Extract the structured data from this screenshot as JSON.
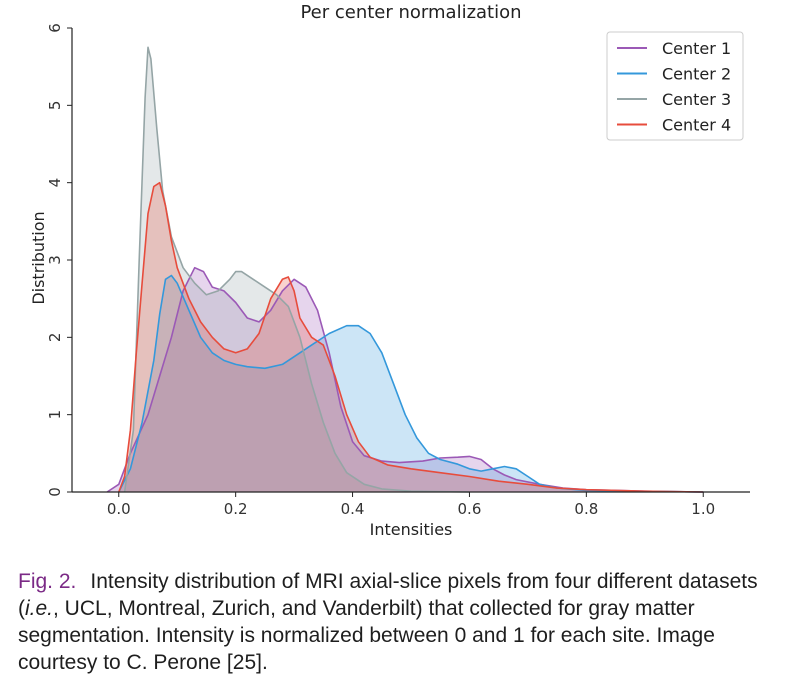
{
  "chart_data": {
    "type": "area",
    "title": "Per center normalization",
    "xlabel": "Intensities",
    "ylabel": "Distribution",
    "xlim": [
      -0.08,
      1.08
    ],
    "ylim": [
      0,
      6
    ],
    "xticks": [
      0.0,
      0.2,
      0.4,
      0.6,
      0.8,
      1.0
    ],
    "xtick_labels": [
      "0.0",
      "0.2",
      "0.4",
      "0.6",
      "0.8",
      "1.0"
    ],
    "yticks": [
      0,
      1,
      2,
      3,
      4,
      5,
      6
    ],
    "ytick_labels": [
      "0",
      "1",
      "2",
      "3",
      "4",
      "5",
      "6"
    ],
    "grid": false,
    "legend_position": "top-right",
    "series": [
      {
        "name": "Center 1",
        "color": "#9b59b6",
        "points": [
          [
            -0.02,
            0
          ],
          [
            0.0,
            0.1
          ],
          [
            0.02,
            0.5
          ],
          [
            0.05,
            1.0
          ],
          [
            0.07,
            1.5
          ],
          [
            0.09,
            2.0
          ],
          [
            0.11,
            2.6
          ],
          [
            0.13,
            2.9
          ],
          [
            0.145,
            2.85
          ],
          [
            0.16,
            2.65
          ],
          [
            0.18,
            2.6
          ],
          [
            0.2,
            2.45
          ],
          [
            0.22,
            2.25
          ],
          [
            0.24,
            2.2
          ],
          [
            0.26,
            2.35
          ],
          [
            0.28,
            2.6
          ],
          [
            0.3,
            2.75
          ],
          [
            0.32,
            2.65
          ],
          [
            0.34,
            2.35
          ],
          [
            0.36,
            1.8
          ],
          [
            0.38,
            1.1
          ],
          [
            0.4,
            0.65
          ],
          [
            0.42,
            0.47
          ],
          [
            0.45,
            0.4
          ],
          [
            0.48,
            0.38
          ],
          [
            0.52,
            0.4
          ],
          [
            0.55,
            0.44
          ],
          [
            0.58,
            0.45
          ],
          [
            0.6,
            0.46
          ],
          [
            0.62,
            0.42
          ],
          [
            0.64,
            0.3
          ],
          [
            0.66,
            0.22
          ],
          [
            0.68,
            0.16
          ],
          [
            0.72,
            0.1
          ],
          [
            0.76,
            0.05
          ],
          [
            0.8,
            0.03
          ],
          [
            0.9,
            0.01
          ],
          [
            1.0,
            0.0
          ]
        ]
      },
      {
        "name": "Center 2",
        "color": "#3498db",
        "points": [
          [
            0.0,
            0
          ],
          [
            0.02,
            0.3
          ],
          [
            0.04,
            0.9
          ],
          [
            0.06,
            1.7
          ],
          [
            0.07,
            2.3
          ],
          [
            0.08,
            2.75
          ],
          [
            0.09,
            2.8
          ],
          [
            0.1,
            2.7
          ],
          [
            0.12,
            2.35
          ],
          [
            0.14,
            2.0
          ],
          [
            0.16,
            1.8
          ],
          [
            0.18,
            1.7
          ],
          [
            0.2,
            1.65
          ],
          [
            0.22,
            1.62
          ],
          [
            0.25,
            1.6
          ],
          [
            0.28,
            1.65
          ],
          [
            0.3,
            1.75
          ],
          [
            0.33,
            1.9
          ],
          [
            0.36,
            2.05
          ],
          [
            0.39,
            2.15
          ],
          [
            0.41,
            2.15
          ],
          [
            0.43,
            2.05
          ],
          [
            0.45,
            1.8
          ],
          [
            0.47,
            1.4
          ],
          [
            0.49,
            1.0
          ],
          [
            0.51,
            0.7
          ],
          [
            0.53,
            0.5
          ],
          [
            0.55,
            0.42
          ],
          [
            0.58,
            0.36
          ],
          [
            0.6,
            0.3
          ],
          [
            0.62,
            0.27
          ],
          [
            0.64,
            0.3
          ],
          [
            0.66,
            0.33
          ],
          [
            0.68,
            0.3
          ],
          [
            0.7,
            0.2
          ],
          [
            0.72,
            0.1
          ],
          [
            0.75,
            0.05
          ],
          [
            0.8,
            0.02
          ],
          [
            1.0,
            0.0
          ]
        ]
      },
      {
        "name": "Center 3",
        "color": "#95a5a6",
        "points": [
          [
            0.01,
            0
          ],
          [
            0.025,
            0.8
          ],
          [
            0.035,
            3.0
          ],
          [
            0.045,
            5.1
          ],
          [
            0.05,
            5.75
          ],
          [
            0.055,
            5.6
          ],
          [
            0.065,
            4.7
          ],
          [
            0.075,
            3.9
          ],
          [
            0.09,
            3.3
          ],
          [
            0.11,
            2.9
          ],
          [
            0.13,
            2.7
          ],
          [
            0.15,
            2.55
          ],
          [
            0.17,
            2.6
          ],
          [
            0.19,
            2.75
          ],
          [
            0.2,
            2.85
          ],
          [
            0.21,
            2.85
          ],
          [
            0.23,
            2.75
          ],
          [
            0.25,
            2.65
          ],
          [
            0.27,
            2.55
          ],
          [
            0.29,
            2.4
          ],
          [
            0.31,
            2.0
          ],
          [
            0.33,
            1.4
          ],
          [
            0.35,
            0.9
          ],
          [
            0.37,
            0.5
          ],
          [
            0.39,
            0.25
          ],
          [
            0.42,
            0.1
          ],
          [
            0.45,
            0.04
          ],
          [
            0.5,
            0.01
          ],
          [
            0.6,
            0.0
          ]
        ]
      },
      {
        "name": "Center 4",
        "color": "#e74c3c",
        "points": [
          [
            0.0,
            0
          ],
          [
            0.01,
            0.2
          ],
          [
            0.02,
            0.8
          ],
          [
            0.03,
            1.8
          ],
          [
            0.04,
            2.7
          ],
          [
            0.05,
            3.6
          ],
          [
            0.06,
            3.95
          ],
          [
            0.07,
            4.0
          ],
          [
            0.08,
            3.7
          ],
          [
            0.09,
            3.25
          ],
          [
            0.1,
            2.9
          ],
          [
            0.12,
            2.5
          ],
          [
            0.14,
            2.2
          ],
          [
            0.16,
            2.0
          ],
          [
            0.18,
            1.85
          ],
          [
            0.2,
            1.8
          ],
          [
            0.22,
            1.85
          ],
          [
            0.24,
            2.05
          ],
          [
            0.26,
            2.5
          ],
          [
            0.28,
            2.75
          ],
          [
            0.29,
            2.78
          ],
          [
            0.3,
            2.6
          ],
          [
            0.31,
            2.25
          ],
          [
            0.33,
            2.0
          ],
          [
            0.35,
            1.9
          ],
          [
            0.37,
            1.5
          ],
          [
            0.39,
            1.0
          ],
          [
            0.41,
            0.65
          ],
          [
            0.43,
            0.45
          ],
          [
            0.46,
            0.35
          ],
          [
            0.5,
            0.3
          ],
          [
            0.55,
            0.25
          ],
          [
            0.6,
            0.2
          ],
          [
            0.65,
            0.14
          ],
          [
            0.7,
            0.1
          ],
          [
            0.75,
            0.05
          ],
          [
            0.8,
            0.03
          ],
          [
            0.9,
            0.01
          ],
          [
            1.0,
            0.0
          ]
        ]
      }
    ]
  },
  "caption": {
    "label": "Fig. 2.",
    "text_a": "Intensity distribution of MRI axial-slice pixels from four different datasets (",
    "text_italic": "i.e.",
    "text_b": ", UCL, Montreal, Zurich, and Vanderbilt) that collected for gray matter segmentation. Intensity is normalized between 0 and 1 for each site. Image courtesy to C. Perone [25]."
  }
}
